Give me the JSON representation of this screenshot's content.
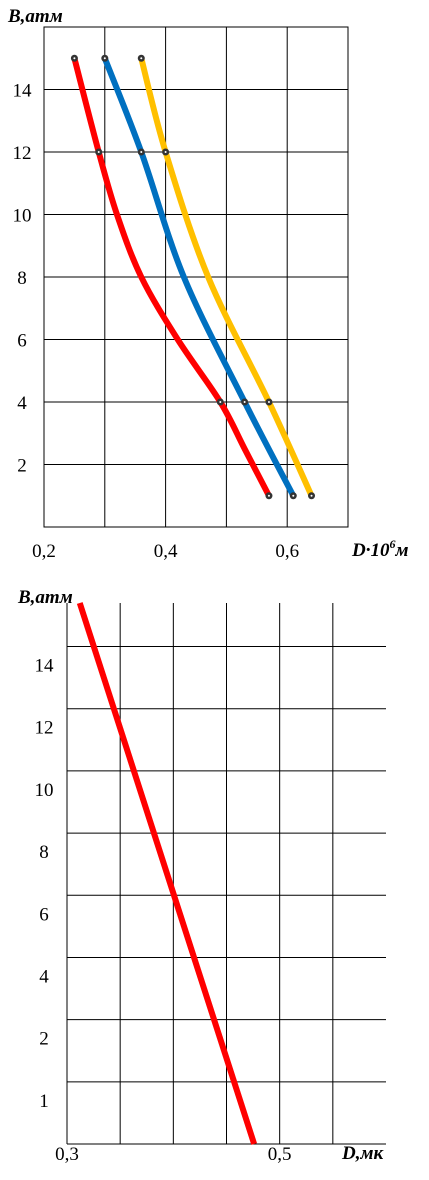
{
  "chart_data": [
    {
      "type": "line",
      "ylabel": "B,атм",
      "xlabel_main": "D·10",
      "xlabel_sup": "6",
      "xlabel_unit": "м",
      "xlim": [
        0.2,
        0.7
      ],
      "ylim": [
        0,
        16
      ],
      "x_tick_labels": [
        {
          "value": 0.2,
          "label": "0,2"
        },
        {
          "value": 0.4,
          "label": "0,4"
        },
        {
          "value": 0.6,
          "label": "0,6"
        }
      ],
      "y_tick_labels": [
        {
          "value": 2,
          "label": "2"
        },
        {
          "value": 4,
          "label": "4"
        },
        {
          "value": 6,
          "label": "6"
        },
        {
          "value": 8,
          "label": "8"
        },
        {
          "value": 10,
          "label": "10"
        },
        {
          "value": 12,
          "label": "12"
        },
        {
          "value": 14,
          "label": "14"
        }
      ],
      "x_gridlines": [
        0.3,
        0.4,
        0.5,
        0.6
      ],
      "y_gridlines": [
        2,
        4,
        6,
        8,
        10,
        12,
        14
      ],
      "series": [
        {
          "color": "#ff0000",
          "points": [
            [
              0.25,
              15
            ],
            [
              0.29,
              12
            ],
            [
              0.32,
              10
            ],
            [
              0.36,
              8
            ],
            [
              0.42,
              6
            ],
            [
              0.49,
              4
            ],
            [
              0.53,
              2.5
            ],
            [
              0.57,
              1
            ]
          ],
          "markers": [
            [
              0.25,
              15
            ],
            [
              0.29,
              12
            ],
            [
              0.49,
              4
            ],
            [
              0.57,
              1
            ]
          ]
        },
        {
          "color": "#0070c0",
          "points": [
            [
              0.3,
              15
            ],
            [
              0.36,
              12
            ],
            [
              0.43,
              8
            ],
            [
              0.53,
              4
            ],
            [
              0.61,
              1
            ]
          ],
          "markers": [
            [
              0.3,
              15
            ],
            [
              0.36,
              12
            ],
            [
              0.53,
              4
            ],
            [
              0.61,
              1
            ]
          ]
        },
        {
          "color": "#ffc000",
          "points": [
            [
              0.36,
              15
            ],
            [
              0.4,
              12
            ],
            [
              0.47,
              8
            ],
            [
              0.57,
              4
            ],
            [
              0.64,
              1
            ]
          ],
          "markers": [
            [
              0.36,
              15
            ],
            [
              0.4,
              12
            ],
            [
              0.57,
              4
            ],
            [
              0.64,
              1
            ]
          ]
        }
      ]
    },
    {
      "type": "line",
      "ylabel": "B,атм",
      "xlabel": "D,мк",
      "xlim": [
        0.3,
        0.6
      ],
      "ylim": [
        0,
        15
      ],
      "x_tick_labels": [
        {
          "value": 0.3,
          "label": "0,3"
        },
        {
          "value": 0.5,
          "label": "0,5"
        }
      ],
      "y_tick_labels": [
        {
          "pos": 1,
          "label": "1"
        },
        {
          "pos": 2,
          "label": "2"
        },
        {
          "pos": 3,
          "label": "4"
        },
        {
          "pos": 4,
          "label": "6"
        },
        {
          "pos": 5,
          "label": "8"
        },
        {
          "pos": 6,
          "label": "10"
        },
        {
          "pos": 7,
          "label": "12"
        },
        {
          "pos": 8,
          "label": "14"
        }
      ],
      "y_pos_max": 8.7,
      "x_gridlines": [
        0.35,
        0.4,
        0.45,
        0.5,
        0.55
      ],
      "y_grid_pos": [
        1,
        2,
        3,
        4,
        5,
        6,
        7,
        8
      ],
      "series": [
        {
          "color": "#ff0000",
          "points": [
            [
              0.312,
              8.7
            ],
            [
              0.476,
              0
            ]
          ]
        }
      ]
    }
  ]
}
